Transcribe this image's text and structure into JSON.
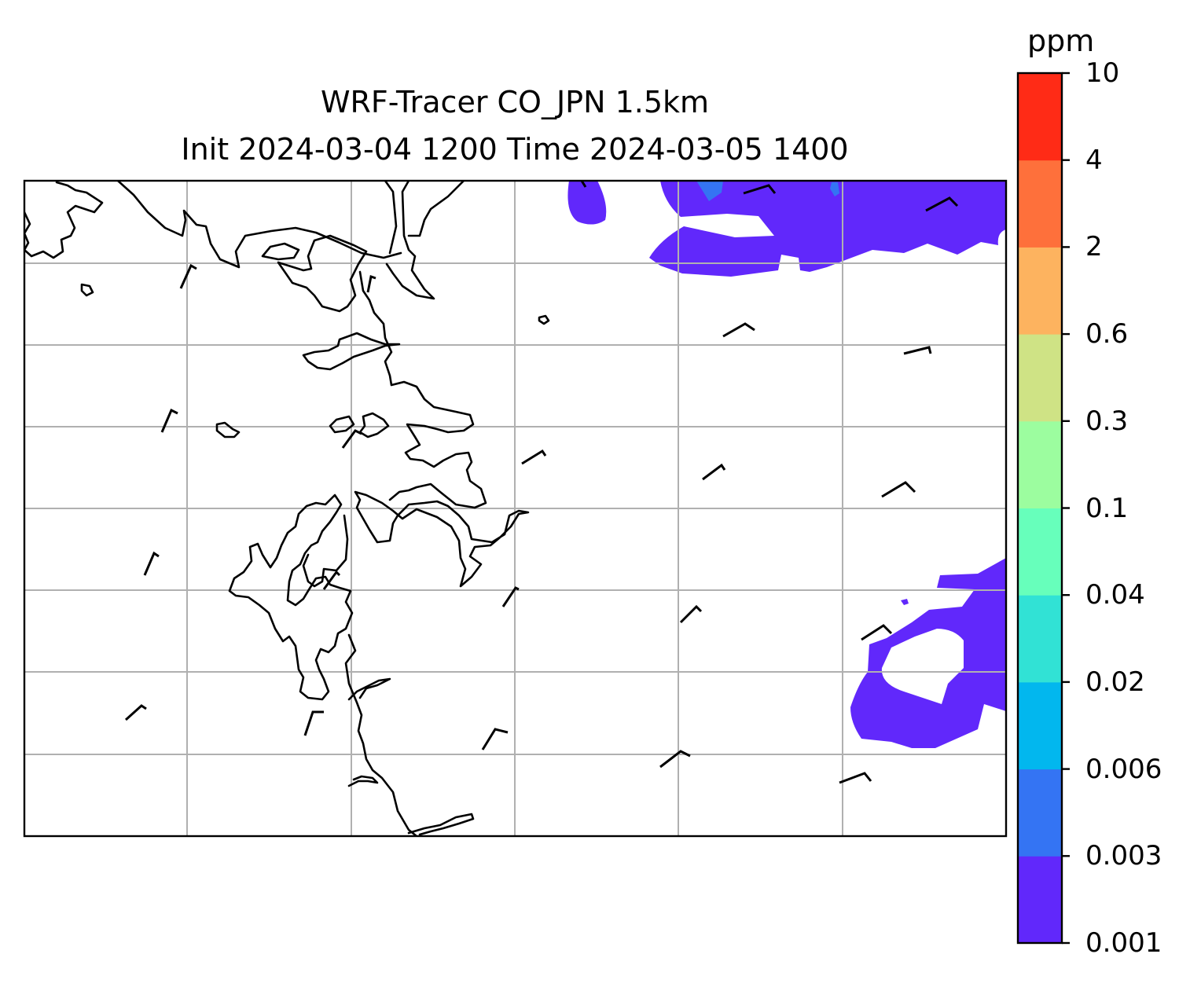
{
  "title": {
    "line1": "WRF-Tracer CO_JPN 1.5km",
    "line2": "Init 2024-03-04 1200 Time 2024-03-05 1400"
  },
  "colorbar": {
    "unit": "ppm",
    "levels": [
      "0.001",
      "0.003",
      "0.006",
      "0.02",
      "0.04",
      "0.1",
      "0.3",
      "0.6",
      "2",
      "4",
      "10"
    ],
    "colors": [
      "#6128fb",
      "#3474f3",
      "#02b7ee",
      "#31e2d5",
      "#67ffbb",
      "#9cfd9f",
      "#cfe385",
      "#fdb35f",
      "#fe703b",
      "#ff2b16"
    ]
  },
  "map": {
    "coastline_color": "#000000",
    "gridline_color": "#b0b0b0",
    "grid": true
  }
}
